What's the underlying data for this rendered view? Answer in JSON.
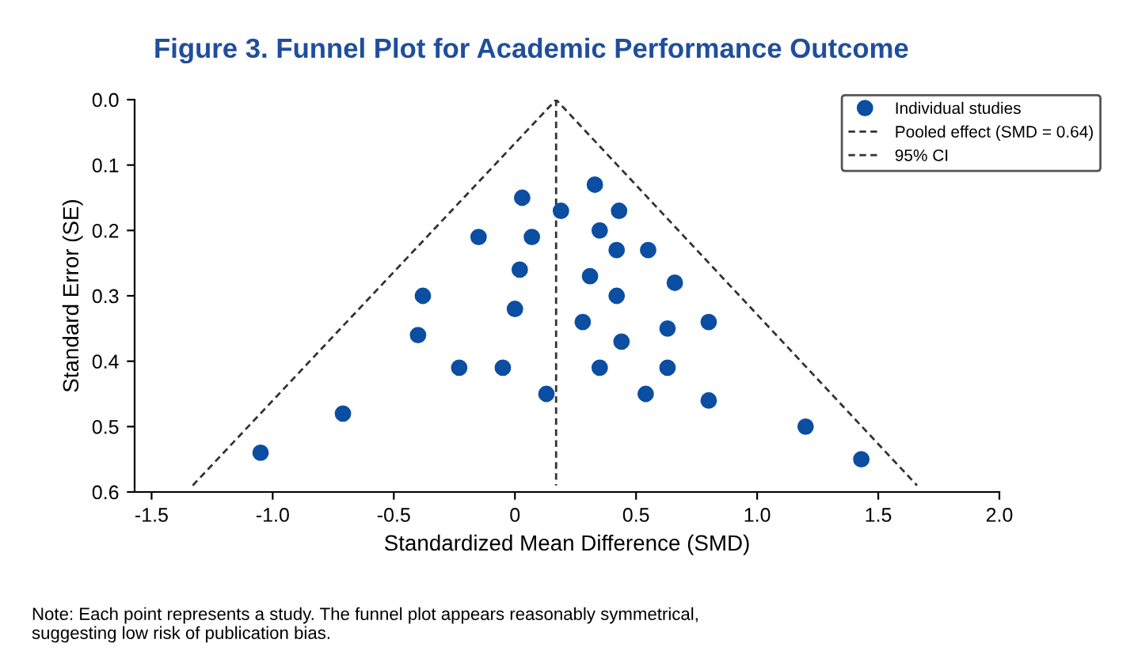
{
  "chart_data": {
    "type": "scatter",
    "title": "Figure 3. Funnel Plot for Academic Performance Outcome",
    "xlabel": "Standardized Mean Difference (SMD)",
    "ylabel": "Standard Error (SE)",
    "xlim": [
      -1.57,
      2.0
    ],
    "xticks": [
      -1.5,
      {
        "value": -1,
        "label": "-1.0"
      },
      -0.5,
      0,
      0.5,
      {
        "value": 1,
        "label": "1.0"
      },
      1.5,
      {
        "value": 2,
        "label": "2.0"
      }
    ],
    "ylim": [
      0.6,
      0.0
    ],
    "yticks": [
      {
        "value": 0,
        "label": "0.0"
      },
      0.1,
      0.2,
      0.3,
      0.4,
      0.5,
      0.6
    ],
    "grid": false,
    "legend": "top right",
    "series": [
      {
        "name": "Individual studies",
        "marker": "circle",
        "color": "#0b4ea2",
        "x": [
          -1.05,
          -0.71,
          -0.4,
          -0.38,
          -0.23,
          -0.15,
          -0.05,
          0.03,
          0.02,
          0.0,
          0.07,
          0.13,
          0.19,
          0.33,
          0.43,
          0.35,
          0.42,
          0.55,
          0.31,
          0.66,
          0.42,
          0.28,
          0.63,
          0.8,
          0.44,
          0.35,
          0.63,
          0.54,
          0.8,
          1.2,
          1.43
        ],
        "values": [
          0.54,
          0.48,
          0.36,
          0.3,
          0.41,
          0.21,
          0.41,
          0.15,
          0.26,
          0.32,
          0.21,
          0.45,
          0.17,
          0.13,
          0.17,
          0.2,
          0.23,
          0.23,
          0.27,
          0.28,
          0.3,
          0.34,
          0.35,
          0.34,
          0.37,
          0.41,
          0.41,
          0.45,
          0.46,
          0.5,
          0.55
        ]
      },
      {
        "name": "Pooled effect (SMD = 0.64)",
        "type": "line",
        "line_style": "dashed",
        "color": "#333333",
        "x": [
          0.17,
          0.17
        ],
        "values": [
          0.0,
          0.59
        ]
      },
      {
        "name": "95% CI",
        "type": "line",
        "line_style": "dashed",
        "color": "#333333",
        "x": [
          -1.33,
          0.17,
          1.66
        ],
        "values": [
          0.59,
          0.0,
          0.59
        ]
      }
    ],
    "annotations": [
      "Note: Each point represents a study. The funnel plot appears reasonably symmetrical,\nsuggesting low risk of publication bias."
    ]
  }
}
